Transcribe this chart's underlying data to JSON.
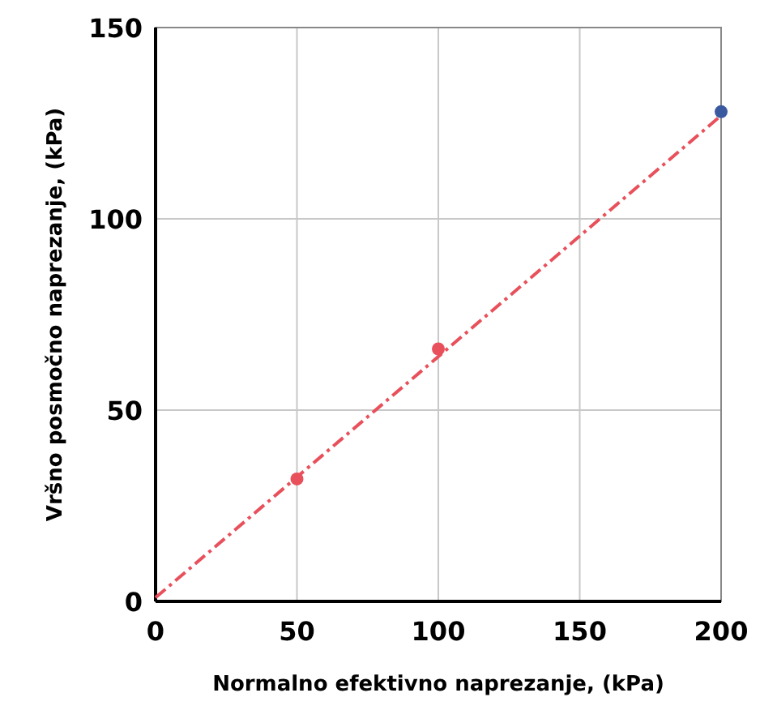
{
  "chart_data": {
    "type": "scatter",
    "xlabel": "Normalno efektivno naprezanje, (kPa)",
    "ylabel": "Vršno posmočno naprezanje, (kPa)",
    "xlim": [
      0,
      200
    ],
    "ylim": [
      0,
      150
    ],
    "xticks": [
      0,
      50,
      100,
      150,
      200
    ],
    "yticks": [
      0,
      50,
      100,
      150
    ],
    "grid": true,
    "series": [
      {
        "type": "line",
        "x": [
          0,
          200
        ],
        "values": [
          1,
          127
        ],
        "color": "#e8505b",
        "line_style": "dashed",
        "marker": "none"
      },
      {
        "x": [
          50,
          100,
          200
        ],
        "values": [
          32,
          66,
          128
        ],
        "colors": [
          "#e8505b",
          "#e8505b",
          "#3a5aa0"
        ],
        "marker": "circle"
      }
    ]
  }
}
